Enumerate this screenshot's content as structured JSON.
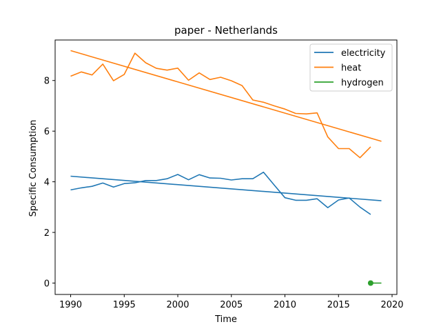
{
  "chart_data": {
    "type": "line",
    "title": "paper - Netherlands",
    "xlabel": "Time",
    "ylabel": "Specific Consumption",
    "xlim": [
      1988.55,
      2020.45
    ],
    "ylim": [
      -0.45,
      9.6
    ],
    "xticks": [
      1990,
      1995,
      2000,
      2005,
      2010,
      2015,
      2020
    ],
    "yticks": [
      0,
      2,
      4,
      6,
      8
    ],
    "grid": false,
    "legend_position": "top-right",
    "series": [
      {
        "name": "electricity",
        "color": "#1f77b4",
        "x": [
          1990,
          1991,
          1992,
          1993,
          1994,
          1995,
          1996,
          1997,
          1998,
          1999,
          2000,
          2001,
          2002,
          2003,
          2004,
          2005,
          2006,
          2007,
          2008,
          2009,
          2010,
          2011,
          2012,
          2013,
          2014,
          2015,
          2016,
          2017,
          2018
        ],
        "y": [
          3.68,
          3.76,
          3.82,
          3.95,
          3.79,
          3.93,
          3.96,
          4.05,
          4.05,
          4.12,
          4.29,
          4.08,
          4.28,
          4.15,
          4.14,
          4.07,
          4.12,
          4.12,
          4.38,
          3.87,
          3.37,
          3.27,
          3.27,
          3.33,
          2.98,
          3.28,
          3.36,
          3.0,
          2.71
        ],
        "trend": {
          "x": [
            1990,
            2019
          ],
          "y": [
            4.22,
            3.25
          ]
        }
      },
      {
        "name": "heat",
        "color": "#ff7f0e",
        "x": [
          1990,
          1991,
          1992,
          1993,
          1994,
          1995,
          1996,
          1997,
          1998,
          1999,
          2000,
          2001,
          2002,
          2003,
          2004,
          2005,
          2006,
          2007,
          2008,
          2009,
          2010,
          2011,
          2012,
          2013,
          2014,
          2015,
          2016,
          2017,
          2018
        ],
        "y": [
          8.17,
          8.34,
          8.22,
          8.65,
          7.99,
          8.24,
          9.08,
          8.7,
          8.48,
          8.41,
          8.49,
          8.01,
          8.3,
          8.04,
          8.13,
          7.99,
          7.8,
          7.23,
          7.14,
          7.0,
          6.87,
          6.7,
          6.68,
          6.72,
          5.77,
          5.31,
          5.31,
          4.95,
          5.38
        ],
        "trend": {
          "x": [
            1990,
            2019
          ],
          "y": [
            9.18,
            5.6
          ]
        }
      },
      {
        "name": "hydrogen",
        "color": "#2ca02c",
        "x": [
          2018
        ],
        "y": [
          0.0
        ],
        "marker": "circle",
        "trend": {
          "x": [
            2018,
            2019
          ],
          "y": [
            0.0,
            0.0
          ]
        }
      }
    ]
  }
}
